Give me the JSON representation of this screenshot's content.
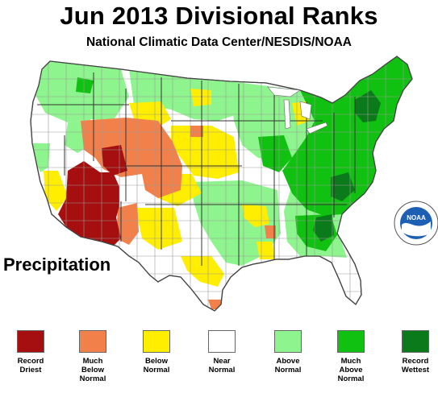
{
  "header": {
    "title": "Jun 2013 Divisional Ranks",
    "subtitle": "National Climatic Data Center/NESDIS/NOAA"
  },
  "variable_label": "Precipitation",
  "logo": {
    "text": "NOAA",
    "ring_text": "NATIONAL OCEANIC AND ATMOSPHERIC ADMINISTRATION · U.S. DEPARTMENT OF COMMERCE"
  },
  "colors": {
    "record_driest": "#a50f0f",
    "much_below": "#f2804a",
    "below": "#ffee00",
    "near": "#ffffff",
    "above": "#8ef48e",
    "much_above": "#11c111",
    "record_wettest": "#0b7a1a",
    "borders": "#9a9a9a"
  },
  "legend": [
    {
      "key": "record_driest",
      "line1": "Record",
      "line2": "Driest",
      "line3": ""
    },
    {
      "key": "much_below",
      "line1": "Much",
      "line2": "Below",
      "line3": "Normal"
    },
    {
      "key": "below",
      "line1": "Below",
      "line2": "Normal",
      "line3": ""
    },
    {
      "key": "near",
      "line1": "Near",
      "line2": "Normal",
      "line3": ""
    },
    {
      "key": "above",
      "line1": "Above",
      "line2": "Normal",
      "line3": ""
    },
    {
      "key": "much_above",
      "line1": "Much",
      "line2": "Above",
      "line3": "Normal"
    },
    {
      "key": "record_wettest",
      "line1": "Record",
      "line2": "Wettest",
      "line3": ""
    }
  ]
}
